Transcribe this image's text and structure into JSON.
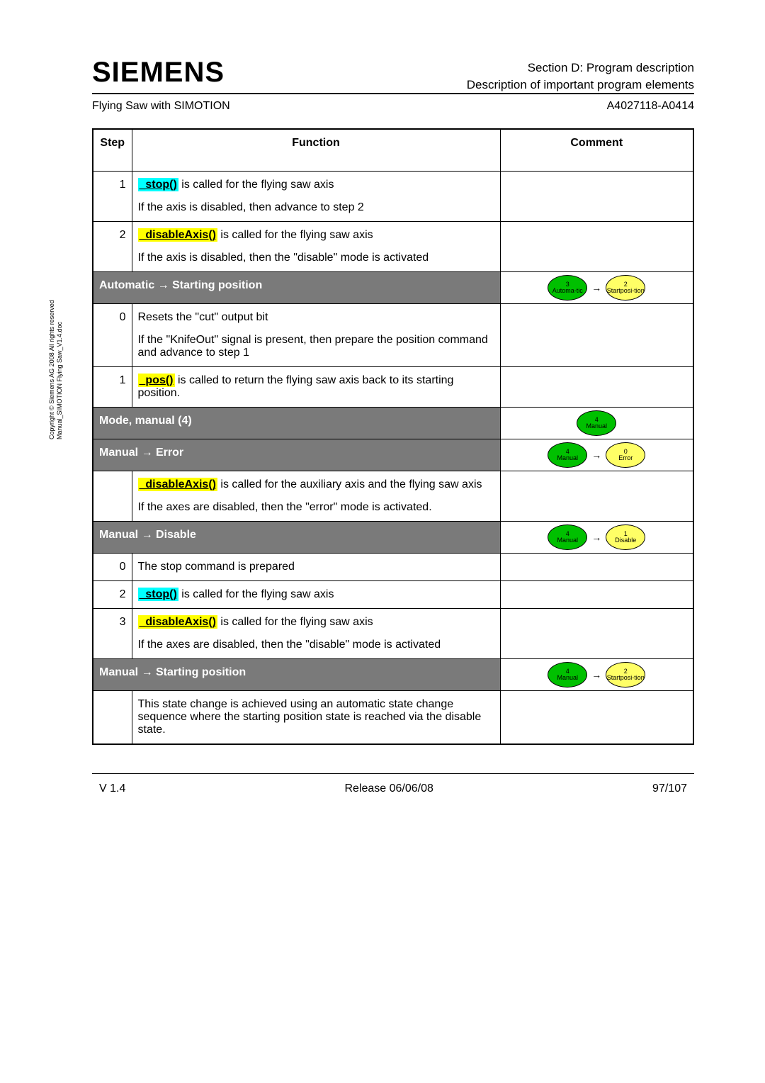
{
  "brand": "SIEMENS",
  "header": {
    "line1": "Section D:  Program description",
    "line2": "Description of important program elements"
  },
  "sub": {
    "left": "Flying Saw with SIMOTION",
    "right": "A4027118-A0414"
  },
  "copyright": {
    "line1": "Copyright © Siemens AG 2008 All rights reserved",
    "line2": "Manual_SIMOTION Flying Saw_V1.4.doc"
  },
  "columns": {
    "step": "Step",
    "function": "Function",
    "comment": "Comment"
  },
  "rows": {
    "r1": {
      "step": "1",
      "fn": "_stop()",
      "after": " is called for the flying saw axis",
      "p2": "If the axis is disabled, then advance to step 2"
    },
    "r2": {
      "step": "2",
      "fn": "_disableAxis()",
      "after": " is called for the flying saw axis",
      "p2": "If the axis is disabled, then the \"disable\" mode is activated"
    }
  },
  "sec_auto_start": {
    "title": "Automatic → Starting position",
    "node1": {
      "num": "3",
      "label": "Automa-tic"
    },
    "node2": {
      "num": "2",
      "label": "Startposi-tion"
    }
  },
  "rows2": {
    "r0": {
      "step": "0",
      "p1": "Resets the \"cut\" output bit",
      "p2": "If the \"KnifeOut\" signal is present, then prepare the position command and advance to step 1"
    },
    "r1": {
      "step": "1",
      "fn": "_pos()",
      "after": " is called to return the flying saw axis back to its starting position."
    }
  },
  "sec_mode_manual": {
    "title": "Mode, manual (4)",
    "node": {
      "num": "4",
      "label": "Manual"
    }
  },
  "sec_manual_error": {
    "title": "Manual → Error",
    "node1": {
      "num": "4",
      "label": "Manual"
    },
    "node2": {
      "num": "0",
      "label": "Error"
    }
  },
  "rows3": {
    "rblank": {
      "fn": "_disableAxis()",
      "after": " is called for the auxiliary axis and the flying saw axis",
      "p2": "If the axes are disabled, then the \"error\" mode is activated."
    }
  },
  "sec_manual_disable": {
    "title": "Manual → Disable",
    "node1": {
      "num": "4",
      "label": "Manual"
    },
    "node2": {
      "num": "1",
      "label": "Disable"
    }
  },
  "rows4": {
    "r0": {
      "step": "0",
      "p1": "The stop command is prepared"
    },
    "r2": {
      "step": "2",
      "fn": "_stop()",
      "after": " is called for the flying saw axis"
    },
    "r3": {
      "step": "3",
      "fn": "_disableAxis()",
      "after": " is called for the flying saw axis",
      "p2": "If the axes are disabled, then the \"disable\" mode is activated"
    }
  },
  "sec_manual_start": {
    "title": "Manual → Starting position",
    "node1": {
      "num": "4",
      "label": "Manual"
    },
    "node2": {
      "num": "2",
      "label": "Startposi-tion"
    }
  },
  "rows5": {
    "rblank": {
      "p1": "This state change is achieved using an automatic state change sequence where the starting position state is reached via the disable state."
    }
  },
  "footer": {
    "left": "V 1.4",
    "center": "Release 06/06/08",
    "right": "97/107"
  },
  "colors": {
    "section_bg": "#7a7a7a",
    "green": "#00c000",
    "yellow": "#ffff66",
    "cyan": "#00ffff",
    "yellow_hl": "#ffff00"
  }
}
